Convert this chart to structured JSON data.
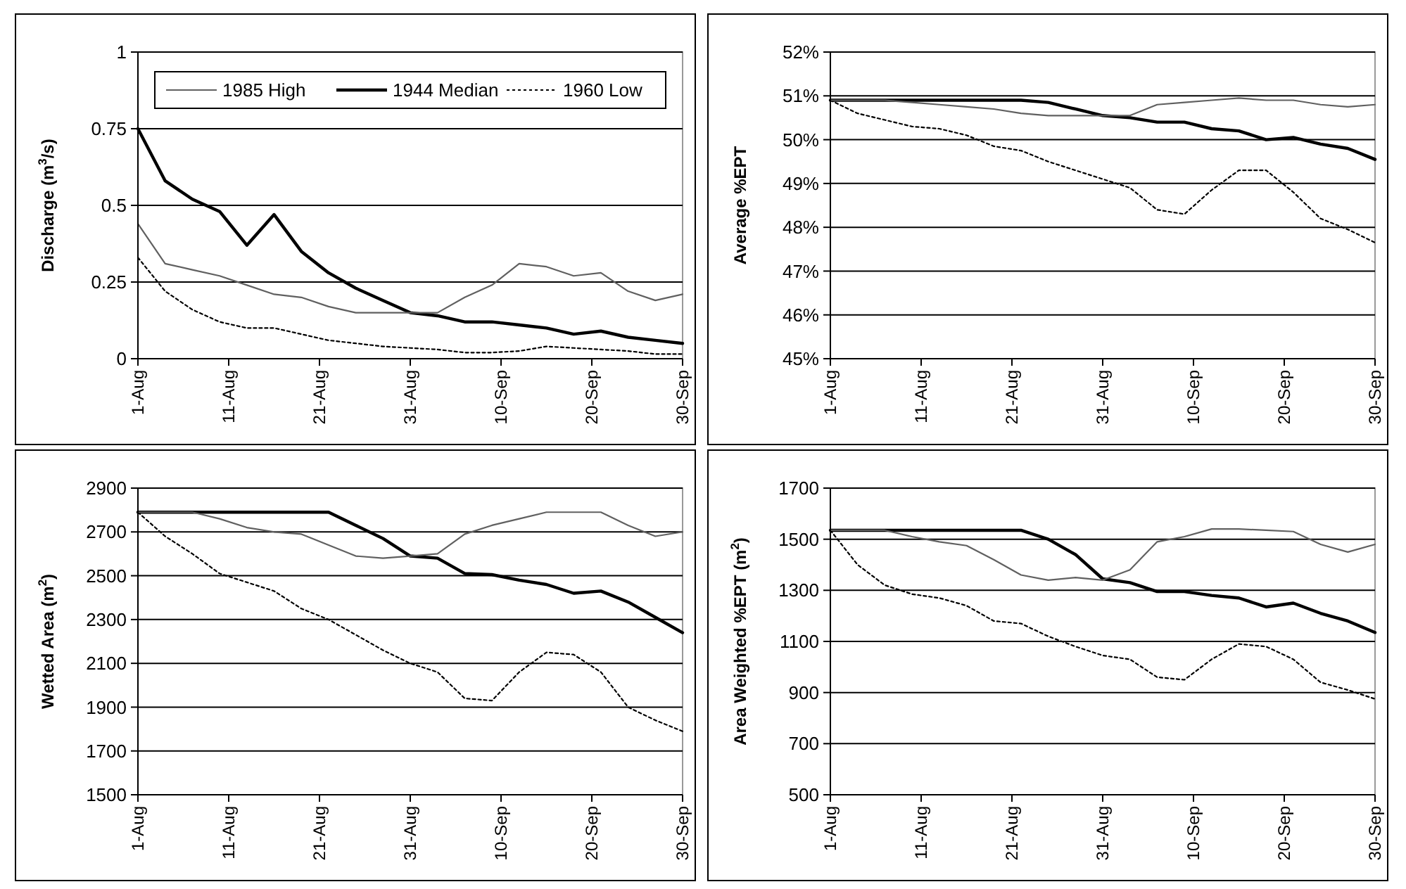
{
  "chart_data": [
    {
      "type": "line",
      "ylabel": "Discharge (m$^{3}$/s)",
      "legend": "top",
      "grid": "y",
      "x": [
        "--08-01",
        "--08-04",
        "--08-07",
        "--08-10",
        "--08-13",
        "--08-16",
        "--08-19",
        "--08-22",
        "--08-25",
        "--08-28",
        "--08-31",
        "--09-03",
        "--09-06",
        "--09-09",
        "--09-12",
        "--09-15",
        "--09-18",
        "--09-21",
        "--09-24",
        "--09-27",
        "--09-30"
      ],
      "xlim": [
        "--08-01",
        "--09-30"
      ],
      "xticks": [
        {
          "value": "--08-01",
          "label": "1-Aug"
        },
        {
          "value": "--08-11",
          "label": "11-Aug"
        },
        {
          "value": "--08-21",
          "label": "21-Aug"
        },
        {
          "value": "--08-31",
          "label": "31-Aug"
        },
        {
          "value": "--09-10",
          "label": "10-Sep"
        },
        {
          "value": "--09-20",
          "label": "20-Sep"
        },
        {
          "value": "--09-30",
          "label": "30-Sep"
        }
      ],
      "ylim": [
        0,
        1
      ],
      "yticks": [
        0,
        0.25,
        0.5,
        0.75,
        1
      ],
      "series": [
        {
          "name": "1985 High",
          "color": "#606060",
          "line_style": "solid",
          "values": [
            0.44,
            0.31,
            0.29,
            0.27,
            0.24,
            0.21,
            0.2,
            0.17,
            0.15,
            0.15,
            0.15,
            0.15,
            0.2,
            0.24,
            0.31,
            0.3,
            0.27,
            0.28,
            0.22,
            0.19,
            0.21
          ]
        },
        {
          "name": "1944 Median",
          "color": "#000000",
          "line_style": "solid",
          "values": [
            0.75,
            0.58,
            0.52,
            0.48,
            0.37,
            0.47,
            0.35,
            0.28,
            0.23,
            0.19,
            0.15,
            0.14,
            0.12,
            0.12,
            0.11,
            0.1,
            0.08,
            0.09,
            0.07,
            0.06,
            0.05
          ]
        },
        {
          "name": "1960 Low",
          "color": "#000000",
          "line_style": "dotted",
          "values": [
            0.33,
            0.22,
            0.16,
            0.12,
            0.1,
            0.1,
            0.08,
            0.06,
            0.05,
            0.04,
            0.035,
            0.03,
            0.02,
            0.02,
            0.025,
            0.04,
            0.035,
            0.03,
            0.025,
            0.015,
            0.015
          ]
        }
      ]
    },
    {
      "type": "line",
      "ylabel": "Average %EPT",
      "grid": "y",
      "x": [
        "--08-01",
        "--08-04",
        "--08-07",
        "--08-10",
        "--08-13",
        "--08-16",
        "--08-19",
        "--08-22",
        "--08-25",
        "--08-28",
        "--08-31",
        "--09-03",
        "--09-06",
        "--09-09",
        "--09-12",
        "--09-15",
        "--09-18",
        "--09-21",
        "--09-24",
        "--09-27",
        "--09-30"
      ],
      "xlim": [
        "--08-01",
        "--09-30"
      ],
      "xticks": [
        {
          "value": "--08-01",
          "label": "1-Aug"
        },
        {
          "value": "--08-11",
          "label": "11-Aug"
        },
        {
          "value": "--08-21",
          "label": "21-Aug"
        },
        {
          "value": "--08-31",
          "label": "31-Aug"
        },
        {
          "value": "--09-10",
          "label": "10-Sep"
        },
        {
          "value": "--09-20",
          "label": "20-Sep"
        },
        {
          "value": "--09-30",
          "label": "30-Sep"
        }
      ],
      "ylim": [
        45,
        52
      ],
      "yticks": [
        {
          "value": 45,
          "label": "45%"
        },
        {
          "value": 46,
          "label": "46%"
        },
        {
          "value": 47,
          "label": "47%"
        },
        {
          "value": 48,
          "label": "48%"
        },
        {
          "value": 49,
          "label": "49%"
        },
        {
          "value": 50,
          "label": "50%"
        },
        {
          "value": 51,
          "label": "51%"
        },
        {
          "value": 52,
          "label": "52%"
        }
      ],
      "series": [
        {
          "color": "#606060",
          "line_style": "solid",
          "values": [
            50.9,
            50.9,
            50.9,
            50.85,
            50.8,
            50.75,
            50.7,
            50.6,
            50.55,
            50.55,
            50.55,
            50.55,
            50.8,
            50.85,
            50.9,
            50.95,
            50.9,
            50.9,
            50.8,
            50.75,
            50.8
          ]
        },
        {
          "color": "#000000",
          "line_style": "solid",
          "values": [
            50.9,
            50.9,
            50.9,
            50.9,
            50.9,
            50.9,
            50.9,
            50.9,
            50.85,
            50.7,
            50.55,
            50.5,
            50.4,
            50.4,
            50.25,
            50.2,
            50.0,
            50.05,
            49.9,
            49.8,
            49.55
          ]
        },
        {
          "color": "#000000",
          "line_style": "dotted",
          "values": [
            50.9,
            50.6,
            50.45,
            50.3,
            50.25,
            50.1,
            49.85,
            49.75,
            49.5,
            49.3,
            49.1,
            48.9,
            48.4,
            48.3,
            48.85,
            49.3,
            49.3,
            48.8,
            48.2,
            47.95,
            47.65
          ]
        }
      ]
    },
    {
      "type": "line",
      "ylabel": "Wetted Area (m$^{2}$)",
      "grid": "y",
      "x": [
        "--08-01",
        "--08-04",
        "--08-07",
        "--08-10",
        "--08-13",
        "--08-16",
        "--08-19",
        "--08-22",
        "--08-25",
        "--08-28",
        "--08-31",
        "--09-03",
        "--09-06",
        "--09-09",
        "--09-12",
        "--09-15",
        "--09-18",
        "--09-21",
        "--09-24",
        "--09-27",
        "--09-30"
      ],
      "xlim": [
        "--08-01",
        "--09-30"
      ],
      "xticks": [
        {
          "value": "--08-01",
          "label": "1-Aug"
        },
        {
          "value": "--08-11",
          "label": "11-Aug"
        },
        {
          "value": "--08-21",
          "label": "21-Aug"
        },
        {
          "value": "--08-31",
          "label": "31-Aug"
        },
        {
          "value": "--09-10",
          "label": "10-Sep"
        },
        {
          "value": "--09-20",
          "label": "20-Sep"
        },
        {
          "value": "--09-30",
          "label": "30-Sep"
        }
      ],
      "ylim": [
        1500,
        2900
      ],
      "yticks": [
        1500,
        1700,
        1900,
        2100,
        2300,
        2500,
        2700,
        2900
      ],
      "series": [
        {
          "color": "#606060",
          "line_style": "solid",
          "values": [
            2790,
            2790,
            2790,
            2760,
            2720,
            2700,
            2690,
            2640,
            2590,
            2580,
            2590,
            2600,
            2690,
            2730,
            2760,
            2790,
            2790,
            2790,
            2730,
            2680,
            2700
          ]
        },
        {
          "color": "#000000",
          "line_style": "solid",
          "values": [
            2790,
            2790,
            2790,
            2790,
            2790,
            2790,
            2790,
            2790,
            2730,
            2670,
            2590,
            2580,
            2510,
            2505,
            2480,
            2460,
            2420,
            2430,
            2380,
            2310,
            2240
          ]
        },
        {
          "color": "#000000",
          "line_style": "dotted",
          "values": [
            2790,
            2680,
            2600,
            2510,
            2470,
            2430,
            2350,
            2300,
            2230,
            2160,
            2100,
            2060,
            1940,
            1930,
            2060,
            2150,
            2140,
            2060,
            1900,
            1840,
            1790
          ]
        }
      ]
    },
    {
      "type": "line",
      "ylabel": "Area Weighted %EPT (m$^{2}$)",
      "grid": "y",
      "x": [
        "--08-01",
        "--08-04",
        "--08-07",
        "--08-10",
        "--08-13",
        "--08-16",
        "--08-19",
        "--08-22",
        "--08-25",
        "--08-28",
        "--08-31",
        "--09-03",
        "--09-06",
        "--09-09",
        "--09-12",
        "--09-15",
        "--09-18",
        "--09-21",
        "--09-24",
        "--09-27",
        "--09-30"
      ],
      "xlim": [
        "--08-01",
        "--09-30"
      ],
      "xticks": [
        {
          "value": "--08-01",
          "label": "1-Aug"
        },
        {
          "value": "--08-11",
          "label": "11-Aug"
        },
        {
          "value": "--08-21",
          "label": "21-Aug"
        },
        {
          "value": "--08-31",
          "label": "31-Aug"
        },
        {
          "value": "--09-10",
          "label": "10-Sep"
        },
        {
          "value": "--09-20",
          "label": "20-Sep"
        },
        {
          "value": "--09-30",
          "label": "30-Sep"
        }
      ],
      "ylim": [
        500,
        1700
      ],
      "yticks": [
        500,
        700,
        900,
        1100,
        1300,
        1500,
        1700
      ],
      "series": [
        {
          "color": "#606060",
          "line_style": "solid",
          "values": [
            1535,
            1535,
            1535,
            1510,
            1490,
            1475,
            1420,
            1360,
            1340,
            1350,
            1340,
            1380,
            1490,
            1510,
            1540,
            1540,
            1535,
            1530,
            1480,
            1450,
            1480
          ]
        },
        {
          "color": "#000000",
          "line_style": "solid",
          "values": [
            1535,
            1535,
            1535,
            1535,
            1535,
            1535,
            1535,
            1535,
            1500,
            1440,
            1345,
            1330,
            1295,
            1295,
            1280,
            1270,
            1235,
            1250,
            1210,
            1180,
            1135
          ]
        },
        {
          "color": "#000000",
          "line_style": "dotted",
          "values": [
            1535,
            1400,
            1320,
            1285,
            1270,
            1240,
            1180,
            1170,
            1120,
            1080,
            1045,
            1030,
            960,
            950,
            1030,
            1090,
            1080,
            1030,
            940,
            910,
            875
          ]
        }
      ]
    }
  ]
}
